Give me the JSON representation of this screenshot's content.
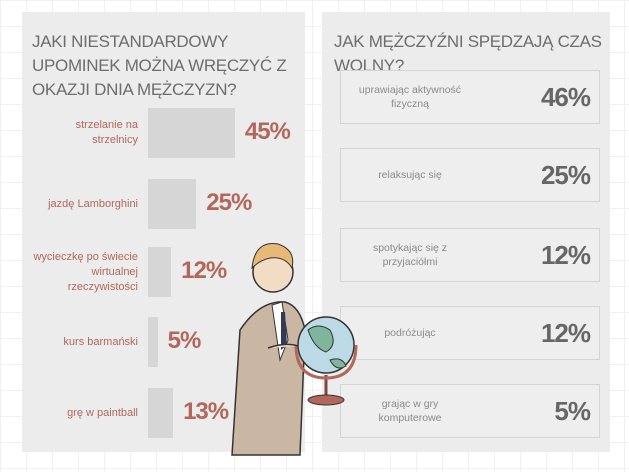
{
  "chart_data": [
    {
      "type": "bar",
      "title": "Jaki niestandardowy upominek można wręczyć z okazji Dnia Mężczyzn?",
      "categories": [
        "strzelanie na strzelnicy",
        "jazdę Lamborghini",
        "wycieczkę po świecie wirtualnej rzeczywistości",
        "kurs barmański",
        "grę w paintball"
      ],
      "values": [
        45,
        25,
        12,
        5,
        13
      ],
      "value_labels": [
        "45%",
        "25%",
        "12%",
        "5%",
        "13%"
      ],
      "color": "#d6d6d6"
    },
    {
      "type": "list",
      "title": "Jak mężczyźni spędzają czas wolny?",
      "categories": [
        "uprawiając aktywność fizyczną",
        "relaksując się",
        "spotykając się z przyjaciółmi",
        "podróżując",
        "grając w gry komputerowe"
      ],
      "values": [
        46,
        25,
        12,
        12,
        5
      ],
      "value_labels": [
        "46%",
        "25%",
        "12%",
        "12%",
        "5%"
      ]
    }
  ]
}
